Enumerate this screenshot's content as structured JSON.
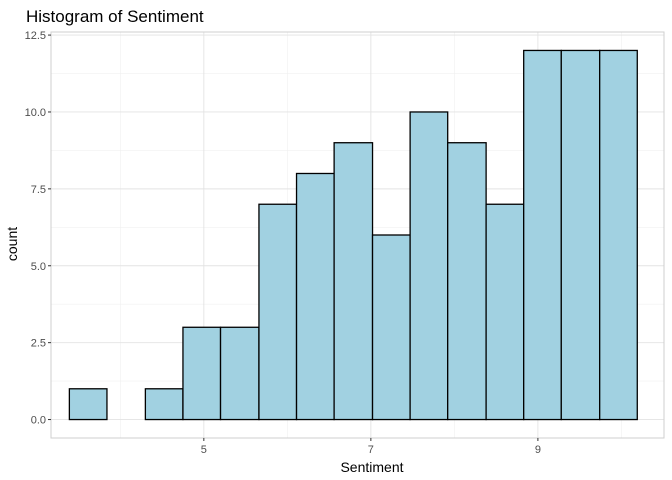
{
  "chart_data": {
    "type": "bar",
    "title": "Histogram of Sentiment",
    "xlabel": "Sentiment",
    "ylabel": "count",
    "xlim": [
      3.17,
      10.51
    ],
    "ylim": [
      -0.6,
      12.6
    ],
    "x_ticks": [
      5,
      7,
      9
    ],
    "x_tick_labels": [
      "5",
      "7",
      "9"
    ],
    "x_minor_ticks": [
      4,
      6,
      8,
      10
    ],
    "y_ticks": [
      0,
      2.5,
      5,
      7.5,
      10,
      12.5
    ],
    "y_tick_labels": [
      "0.0",
      "2.5",
      "5.0",
      "7.5",
      "10.0",
      "12.5"
    ],
    "bins": [
      {
        "x0": 3.39,
        "x1": 3.84,
        "count": 1
      },
      {
        "x0": 3.84,
        "x1": 4.3,
        "count": 0
      },
      {
        "x0": 4.3,
        "x1": 4.75,
        "count": 1
      },
      {
        "x0": 4.75,
        "x1": 5.2,
        "count": 3
      },
      {
        "x0": 5.2,
        "x1": 5.66,
        "count": 3
      },
      {
        "x0": 5.66,
        "x1": 6.11,
        "count": 7
      },
      {
        "x0": 6.11,
        "x1": 6.56,
        "count": 8
      },
      {
        "x0": 6.56,
        "x1": 7.02,
        "count": 9
      },
      {
        "x0": 7.02,
        "x1": 7.47,
        "count": 6
      },
      {
        "x0": 7.47,
        "x1": 7.92,
        "count": 10
      },
      {
        "x0": 7.92,
        "x1": 8.38,
        "count": 9
      },
      {
        "x0": 8.38,
        "x1": 8.83,
        "count": 7
      },
      {
        "x0": 8.83,
        "x1": 9.28,
        "count": 12
      },
      {
        "x0": 9.28,
        "x1": 9.74,
        "count": 12
      },
      {
        "x0": 9.74,
        "x1": 10.19,
        "count": 12
      }
    ],
    "grid": true,
    "colors": {
      "bar_fill": "#a1d1e1",
      "bar_stroke": "#000000"
    }
  }
}
